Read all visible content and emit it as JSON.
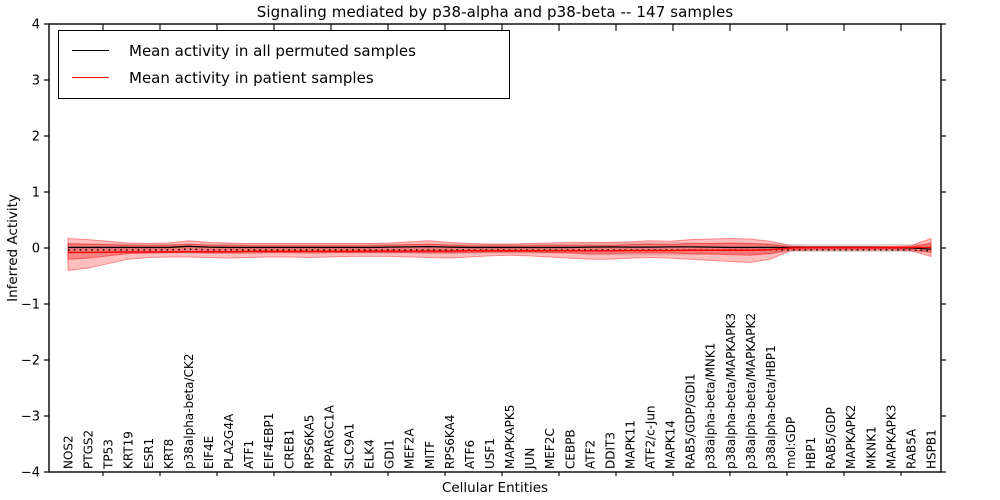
{
  "figure": {
    "background": "#ffffff",
    "frame_color": "#000000"
  },
  "legend": {
    "items": [
      {
        "label": "Mean activity in all permuted samples",
        "color": "#000000"
      },
      {
        "label": "Mean activity in patient samples",
        "color": "#ff0000"
      }
    ]
  },
  "chart_data": {
    "type": "line",
    "title": "Signaling mediated by p38-alpha and p38-beta -- 147 samples",
    "xlabel": "Cellular Entities",
    "ylabel": "Inferred Activity",
    "ylim": [
      -4,
      4
    ],
    "yticks": [
      4,
      3,
      2,
      1,
      0,
      -1,
      -2,
      -3,
      -4
    ],
    "grid": false,
    "legend_position": "upper left",
    "categories": [
      "NOS2",
      "PTGS2",
      "TP53",
      "KRT19",
      "ESR1",
      "KRT8",
      "p38alpha-beta/CK2",
      "EIF4E",
      "PLA2G4A",
      "ATF1",
      "EIF4EBP1",
      "CREB1",
      "RPS6KA5",
      "PPARGC1A",
      "SLC9A1",
      "ELK4",
      "GDI1",
      "MEF2A",
      "MITF",
      "RPS6KA4",
      "ATF6",
      "USF1",
      "MAPKAPK5",
      "JUN",
      "MEF2C",
      "CEBPB",
      "ATF2",
      "DDIT3",
      "MAPK11",
      "ATF2/c-Jun",
      "MAPK14",
      "RAB5/GDP/GDI1",
      "p38alpha-beta/MNK1",
      "p38alpha-beta/MAPKAPK3",
      "p38alpha-beta/MAPKAPK2",
      "p38alpha-beta/HBP1",
      "mol:GDP",
      "HBP1",
      "RAB5/GDP",
      "MAPKAPK2",
      "MKNK1",
      "MAPKAPK3",
      "RAB5A",
      "HSPB1"
    ],
    "series": [
      {
        "name": "Mean activity in all permuted samples",
        "color": "#000000",
        "style": "solid",
        "width": 1.3,
        "values": [
          0.01,
          0.01,
          0.01,
          0.01,
          0.01,
          0.01,
          0.03,
          0.015,
          0.01,
          0.01,
          0.01,
          0.01,
          0.01,
          0.01,
          0.01,
          0.01,
          0.015,
          0.02,
          0.025,
          0.015,
          0.01,
          0.01,
          0.01,
          0.01,
          0.01,
          0.01,
          0.015,
          0.02,
          0.015,
          0.015,
          0.02,
          0.02,
          0.015,
          0.01,
          0.01,
          0.01,
          0.01,
          0.01,
          0.01,
          0.01,
          0.01,
          0.005,
          0.0,
          -0.02
        ]
      },
      {
        "name": "permuted-dotted-guide",
        "color": "#000000",
        "style": "dotted",
        "width": 1.3,
        "values": [
          -0.035,
          -0.035,
          -0.035,
          -0.035,
          -0.035,
          -0.035,
          -0.02,
          -0.035,
          -0.035,
          -0.035,
          -0.035,
          -0.035,
          -0.035,
          -0.035,
          -0.035,
          -0.035,
          -0.035,
          -0.035,
          -0.035,
          -0.035,
          -0.035,
          -0.035,
          -0.035,
          -0.035,
          -0.035,
          -0.035,
          -0.035,
          -0.035,
          -0.035,
          -0.035,
          -0.035,
          -0.035,
          -0.035,
          -0.035,
          -0.035,
          -0.035,
          -0.035,
          -0.035,
          -0.035,
          -0.035,
          -0.035,
          -0.035,
          -0.035,
          -0.05
        ]
      },
      {
        "name": "Mean activity in patient samples",
        "color": "#ff0000",
        "style": "solid",
        "width": 1.4,
        "values": [
          -0.08,
          -0.08,
          -0.075,
          -0.07,
          -0.07,
          -0.07,
          -0.065,
          -0.065,
          -0.065,
          -0.06,
          -0.06,
          -0.06,
          -0.06,
          -0.06,
          -0.06,
          -0.055,
          -0.055,
          -0.055,
          -0.055,
          -0.055,
          -0.05,
          -0.05,
          -0.05,
          -0.05,
          -0.05,
          -0.05,
          -0.05,
          -0.05,
          -0.045,
          -0.045,
          -0.045,
          -0.04,
          -0.04,
          -0.04,
          -0.04,
          -0.03,
          0.0,
          0.005,
          0.005,
          0.005,
          0.005,
          0.005,
          0.01,
          0.01
        ]
      }
    ],
    "bands": [
      {
        "name": "permuted-std-band",
        "fill": "#888888",
        "fill_opacity": 0.18,
        "edge": "#999999",
        "edge_opacity": 0.35,
        "top": [
          0.07,
          0.07,
          0.07,
          0.07,
          0.07,
          0.07,
          0.07,
          0.07,
          0.07,
          0.07,
          0.07,
          0.07,
          0.07,
          0.07,
          0.07,
          0.07,
          0.07,
          0.07,
          0.07,
          0.07,
          0.07,
          0.07,
          0.07,
          0.07,
          0.07,
          0.07,
          0.09,
          0.09,
          0.09,
          0.09,
          0.09,
          0.09,
          0.08,
          0.08,
          0.08,
          0.08,
          0.06,
          0.06,
          0.06,
          0.06,
          0.06,
          0.06,
          0.06,
          0.06
        ],
        "bottom": [
          -0.09,
          -0.09,
          -0.09,
          -0.09,
          -0.09,
          -0.09,
          -0.09,
          -0.09,
          -0.09,
          -0.09,
          -0.09,
          -0.09,
          -0.09,
          -0.09,
          -0.09,
          -0.09,
          -0.09,
          -0.09,
          -0.09,
          -0.09,
          -0.09,
          -0.09,
          -0.09,
          -0.09,
          -0.09,
          -0.09,
          -0.12,
          -0.12,
          -0.12,
          -0.12,
          -0.12,
          -0.12,
          -0.1,
          -0.1,
          -0.1,
          -0.1,
          -0.06,
          -0.06,
          -0.06,
          -0.06,
          -0.06,
          -0.06,
          -0.06,
          -0.07
        ]
      },
      {
        "name": "patient-outer-band",
        "fill": "#ff0000",
        "fill_opacity": 0.25,
        "edge": "#ff0000",
        "edge_opacity": 0.4,
        "top": [
          0.17,
          0.15,
          0.12,
          0.09,
          0.08,
          0.09,
          0.13,
          0.1,
          0.09,
          0.08,
          0.08,
          0.08,
          0.08,
          0.08,
          0.08,
          0.08,
          0.09,
          0.11,
          0.13,
          0.1,
          0.08,
          0.07,
          0.07,
          0.08,
          0.09,
          0.1,
          0.1,
          0.1,
          0.11,
          0.13,
          0.12,
          0.15,
          0.16,
          0.17,
          0.16,
          0.12,
          0.04,
          0.03,
          0.03,
          0.03,
          0.03,
          0.03,
          0.04,
          0.17
        ],
        "bottom": [
          -0.4,
          -0.36,
          -0.28,
          -0.2,
          -0.17,
          -0.16,
          -0.16,
          -0.17,
          -0.18,
          -0.17,
          -0.16,
          -0.16,
          -0.17,
          -0.16,
          -0.15,
          -0.15,
          -0.15,
          -0.16,
          -0.17,
          -0.18,
          -0.16,
          -0.14,
          -0.13,
          -0.14,
          -0.16,
          -0.18,
          -0.2,
          -0.2,
          -0.18,
          -0.17,
          -0.18,
          -0.2,
          -0.22,
          -0.24,
          -0.26,
          -0.2,
          -0.05,
          -0.04,
          -0.04,
          -0.04,
          -0.04,
          -0.04,
          -0.05,
          -0.15
        ]
      },
      {
        "name": "patient-inner-band",
        "fill": "#ff0000",
        "fill_opacity": 0.3,
        "edge": "#ff0000",
        "edge_opacity": 0.45,
        "top": [
          0.08,
          0.07,
          0.06,
          0.05,
          0.04,
          0.05,
          0.07,
          0.05,
          0.05,
          0.04,
          0.04,
          0.04,
          0.04,
          0.04,
          0.04,
          0.04,
          0.05,
          0.06,
          0.07,
          0.05,
          0.04,
          0.04,
          0.04,
          0.04,
          0.05,
          0.05,
          0.05,
          0.05,
          0.06,
          0.07,
          0.06,
          0.08,
          0.08,
          0.09,
          0.08,
          0.06,
          0.02,
          0.02,
          0.02,
          0.02,
          0.02,
          0.02,
          0.02,
          0.09
        ],
        "bottom": [
          -0.2,
          -0.18,
          -0.14,
          -0.1,
          -0.09,
          -0.08,
          -0.08,
          -0.09,
          -0.09,
          -0.09,
          -0.08,
          -0.08,
          -0.09,
          -0.08,
          -0.08,
          -0.08,
          -0.08,
          -0.08,
          -0.09,
          -0.09,
          -0.08,
          -0.07,
          -0.07,
          -0.07,
          -0.08,
          -0.09,
          -0.1,
          -0.1,
          -0.09,
          -0.09,
          -0.09,
          -0.1,
          -0.11,
          -0.12,
          -0.13,
          -0.1,
          -0.03,
          -0.02,
          -0.02,
          -0.02,
          -0.02,
          -0.02,
          -0.03,
          -0.08
        ]
      }
    ]
  }
}
